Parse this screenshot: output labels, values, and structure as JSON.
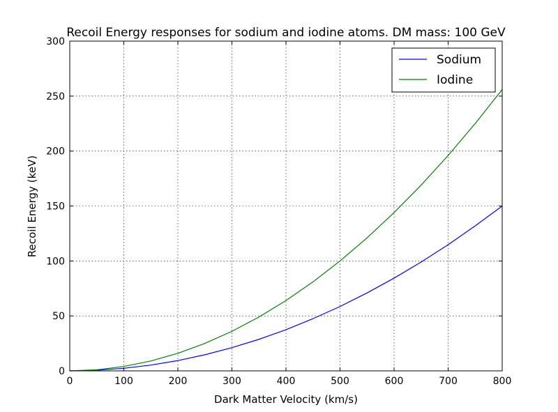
{
  "chart_data": {
    "type": "line",
    "title": "Recoil Energy responses for sodium and iodine atoms. DM mass: 100 GeV",
    "xlabel": "Dark Matter Velocity (km/s)",
    "ylabel": "Recoil Energy (keV)",
    "xlim": [
      0,
      800
    ],
    "ylim": [
      0,
      300
    ],
    "xticks": [
      0,
      100,
      200,
      300,
      400,
      500,
      600,
      700,
      800
    ],
    "yticks": [
      0,
      50,
      100,
      150,
      200,
      250,
      300
    ],
    "grid": true,
    "legend_position": "top-right",
    "x": [
      0,
      50,
      100,
      150,
      200,
      250,
      300,
      350,
      400,
      450,
      500,
      550,
      600,
      650,
      700,
      750,
      800
    ],
    "series": [
      {
        "name": "Sodium",
        "color": "#0000ff",
        "values": [
          0,
          0.59,
          2.35,
          5.28,
          9.38,
          14.66,
          21.1,
          28.7,
          37.5,
          47.5,
          58.6,
          70.9,
          84.4,
          99.0,
          114.8,
          131.9,
          150.0
        ]
      },
      {
        "name": "Iodine",
        "color": "#008000",
        "values": [
          0,
          1.0,
          4.0,
          9.0,
          16.0,
          25.0,
          36.0,
          49.0,
          64.0,
          81.0,
          100.0,
          121.0,
          144.0,
          169.0,
          196.0,
          225.0,
          256.0
        ]
      }
    ]
  }
}
